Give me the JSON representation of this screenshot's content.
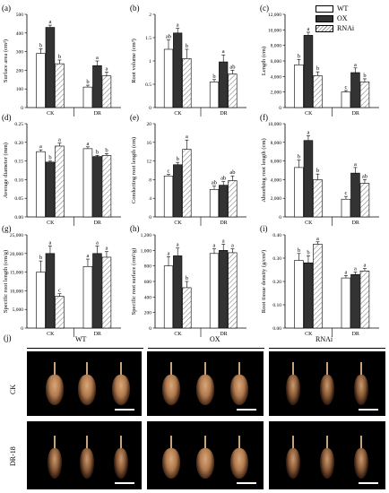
{
  "legend": {
    "items": [
      {
        "name": "WT",
        "style": "white"
      },
      {
        "name": "OX",
        "style": "dark"
      },
      {
        "name": "RNAi",
        "style": "hatched"
      }
    ]
  },
  "colors": {
    "wt": "#ffffff",
    "ox": "#333333",
    "rnai_hatch": "#888888"
  },
  "chart_data": [
    {
      "id": "a",
      "panel_label": "(a)",
      "type": "bar",
      "ylabel": "Surface area (cm²)",
      "categories": [
        "CK",
        "DR"
      ],
      "ylim": [
        0,
        500
      ],
      "yticks": [
        0,
        100,
        200,
        300,
        400,
        500
      ],
      "series": [
        {
          "name": "WT",
          "values": [
            290,
            110
          ],
          "errors": [
            25,
            10
          ]
        },
        {
          "name": "OX",
          "values": [
            430,
            225
          ],
          "errors": [
            12,
            25
          ]
        },
        {
          "name": "RNAi",
          "values": [
            235,
            170
          ],
          "errors": [
            20,
            20
          ]
        }
      ],
      "letters": [
        [
          "b",
          "a",
          "b"
        ],
        [
          "b",
          "a",
          "a"
        ]
      ]
    },
    {
      "id": "b",
      "panel_label": "(b)",
      "type": "bar",
      "ylabel": "Root volume (cm³)",
      "categories": [
        "CK",
        "DR"
      ],
      "ylim": [
        0,
        2.0
      ],
      "yticks": [
        0,
        0.5,
        1.0,
        1.5,
        2.0
      ],
      "series": [
        {
          "name": "WT",
          "values": [
            1.25,
            0.55
          ],
          "errors": [
            0.2,
            0.05
          ]
        },
        {
          "name": "OX",
          "values": [
            1.6,
            0.98
          ],
          "errors": [
            0.1,
            0.15
          ]
        },
        {
          "name": "RNAi",
          "values": [
            1.05,
            0.72
          ],
          "errors": [
            0.2,
            0.08
          ]
        }
      ],
      "letters": [
        [
          "ab",
          "a",
          "b"
        ],
        [
          "b",
          "a",
          "ab"
        ]
      ]
    },
    {
      "id": "c",
      "panel_label": "(c)",
      "type": "bar",
      "ylabel": "Length (cm)",
      "categories": [
        "CK",
        "DR"
      ],
      "ylim": [
        0,
        12000
      ],
      "yticks": [
        0,
        2000,
        4000,
        6000,
        8000,
        10000,
        12000
      ],
      "ytick_labels": [
        "0",
        "2,000",
        "4,000",
        "6,000",
        "8,000",
        "10,000",
        "12,000"
      ],
      "series": [
        {
          "name": "WT",
          "values": [
            5500,
            2000
          ],
          "errors": [
            700,
            200
          ]
        },
        {
          "name": "OX",
          "values": [
            9300,
            4500
          ],
          "errors": [
            400,
            600
          ]
        },
        {
          "name": "RNAi",
          "values": [
            4100,
            3300
          ],
          "errors": [
            500,
            400
          ]
        }
      ],
      "letters": [
        [
          "b",
          "a",
          "b"
        ],
        [
          "c",
          "a",
          "b"
        ]
      ]
    },
    {
      "id": "d",
      "panel_label": "(d)",
      "type": "bar",
      "ylabel": "Average diameter (mm)",
      "categories": [
        "CK",
        "DR"
      ],
      "ylim": [
        0,
        0.25
      ],
      "yticks": [
        0,
        0.05,
        0.1,
        0.15,
        0.2,
        0.25
      ],
      "ytick_labels": [
        "0.00",
        "0.05",
        "0.10",
        "0.15",
        "0.20",
        "0.25"
      ],
      "series": [
        {
          "name": "WT",
          "values": [
            0.175,
            0.183
          ],
          "errors": [
            0.005,
            0.005
          ]
        },
        {
          "name": "OX",
          "values": [
            0.147,
            0.162
          ],
          "errors": [
            0.003,
            0.003
          ]
        },
        {
          "name": "RNAi",
          "values": [
            0.19,
            0.165
          ],
          "errors": [
            0.008,
            0.005
          ]
        }
      ],
      "letters": [
        [
          "a",
          "b",
          "a"
        ],
        [
          "a",
          "b",
          "b"
        ]
      ]
    },
    {
      "id": "e",
      "panel_label": "(e)",
      "type": "bar",
      "ylabel": "Conducting root length (cm)",
      "categories": [
        "CK",
        "DR"
      ],
      "ylim": [
        0,
        20
      ],
      "yticks": [
        0,
        4,
        8,
        12,
        16,
        20
      ],
      "series": [
        {
          "name": "WT",
          "values": [
            8.8,
            5.9
          ],
          "errors": [
            0.3,
            0.7
          ]
        },
        {
          "name": "OX",
          "values": [
            11.2,
            6.8
          ],
          "errors": [
            0.5,
            0.8
          ]
        },
        {
          "name": "RNAi",
          "values": [
            14.5,
            7.8
          ],
          "errors": [
            2.0,
            1.0
          ]
        }
      ],
      "letters": [
        [
          "c",
          "b",
          "a"
        ],
        [
          "ab",
          "ab",
          "ab"
        ]
      ]
    },
    {
      "id": "f",
      "panel_label": "(f)",
      "type": "bar",
      "ylabel": "Absorbing root length (cm)",
      "categories": [
        "CK",
        "DR"
      ],
      "ylim": [
        0,
        10000
      ],
      "yticks": [
        0,
        2000,
        4000,
        6000,
        8000,
        10000
      ],
      "ytick_labels": [
        "0",
        "2,000",
        "4,000",
        "6,000",
        "8,000",
        "10,000"
      ],
      "series": [
        {
          "name": "WT",
          "values": [
            5300,
            1900
          ],
          "errors": [
            800,
            300
          ]
        },
        {
          "name": "OX",
          "values": [
            8200,
            4700
          ],
          "errors": [
            500,
            600
          ]
        },
        {
          "name": "RNAi",
          "values": [
            4000,
            3600
          ],
          "errors": [
            600,
            400
          ]
        }
      ],
      "letters": [
        [
          "b",
          "a",
          "b"
        ],
        [
          "c",
          "a",
          "ab"
        ]
      ]
    },
    {
      "id": "g",
      "panel_label": "(g)",
      "type": "bar",
      "ylabel": "Specific root length (cm/g)",
      "categories": [
        "CK",
        "DR"
      ],
      "ylim": [
        0,
        25000
      ],
      "yticks": [
        0,
        5000,
        10000,
        15000,
        20000,
        25000
      ],
      "ytick_labels": [
        "0",
        "5,000",
        "10,000",
        "15,000",
        "20,000",
        "25,000"
      ],
      "series": [
        {
          "name": "WT",
          "values": [
            15000,
            16500
          ],
          "errors": [
            3000,
            2000
          ]
        },
        {
          "name": "OX",
          "values": [
            20000,
            20000
          ],
          "errors": [
            2000,
            2000
          ]
        },
        {
          "name": "RNAi",
          "values": [
            8500,
            19000
          ],
          "errors": [
            700,
            1500
          ]
        }
      ],
      "letters": [
        [
          "b",
          "a",
          "c"
        ],
        [
          "a",
          "a",
          "a"
        ]
      ]
    },
    {
      "id": "h",
      "panel_label": "(h)",
      "type": "bar",
      "ylabel": "Specific root surface (cm²/g)",
      "categories": [
        "CK",
        "DR"
      ],
      "ylim": [
        0,
        1200
      ],
      "yticks": [
        0,
        200,
        400,
        600,
        800,
        1000,
        1200
      ],
      "ytick_labels": [
        "0",
        "200",
        "400",
        "600",
        "800",
        "1,000",
        "1,200"
      ],
      "series": [
        {
          "name": "WT",
          "values": [
            800,
            960
          ],
          "errors": [
            120,
            60
          ]
        },
        {
          "name": "OX",
          "values": [
            930,
            1000
          ],
          "errors": [
            100,
            80
          ]
        },
        {
          "name": "RNAi",
          "values": [
            520,
            970
          ],
          "errors": [
            80,
            50
          ]
        }
      ],
      "letters": [
        [
          "a",
          "a",
          "b"
        ],
        [
          "a",
          "a",
          "a"
        ]
      ]
    },
    {
      "id": "i",
      "panel_label": "(i)",
      "type": "bar",
      "ylabel": "Root tissue density (g/cm³)",
      "categories": [
        "CK",
        "DR"
      ],
      "ylim": [
        0,
        0.4
      ],
      "yticks": [
        0,
        0.1,
        0.2,
        0.3,
        0.4
      ],
      "ytick_labels": [
        "0.00",
        "0.10",
        "0.20",
        "0.30",
        "0.40"
      ],
      "series": [
        {
          "name": "WT",
          "values": [
            0.29,
            0.215
          ],
          "errors": [
            0.03,
            0.01
          ]
        },
        {
          "name": "OX",
          "values": [
            0.28,
            0.23
          ],
          "errors": [
            0.03,
            0.01
          ]
        },
        {
          "name": "RNAi",
          "values": [
            0.36,
            0.245
          ],
          "errors": [
            0.01,
            0.01
          ]
        }
      ],
      "letters": [
        [
          "b",
          "b",
          "a"
        ],
        [
          "a",
          "a",
          "a"
        ]
      ]
    }
  ],
  "photo_panel": {
    "panel_label": "(j)",
    "columns": [
      "WT",
      "OX",
      "RNAi"
    ],
    "rows": [
      "CK",
      "DR-18"
    ]
  }
}
